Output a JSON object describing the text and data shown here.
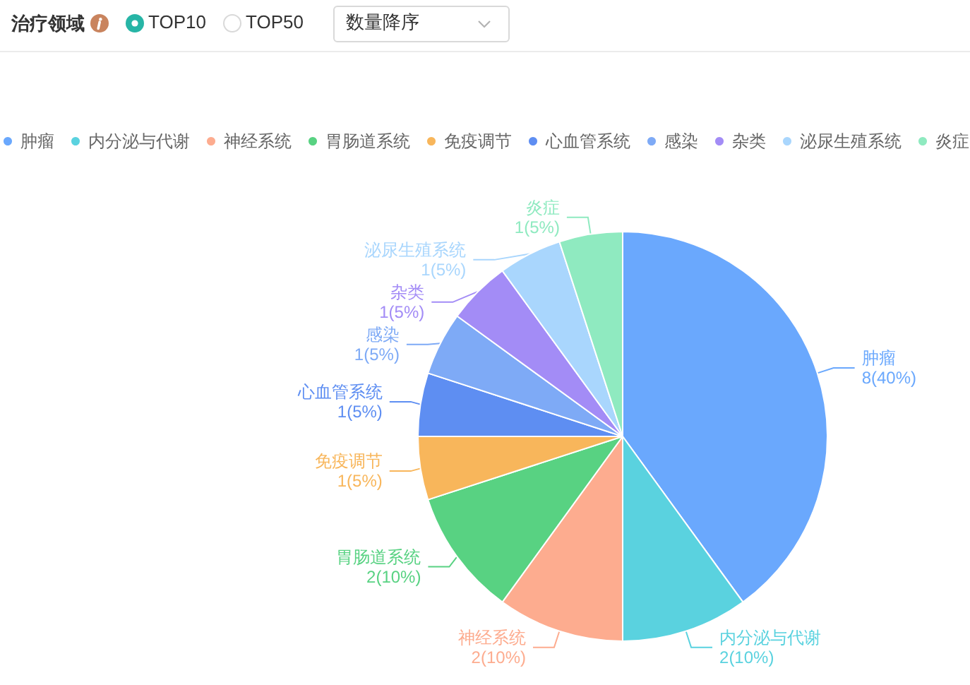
{
  "chart_data": {
    "type": "pie",
    "title": "治疗领域",
    "categories": [
      "肿瘤",
      "内分泌与代谢",
      "神经系统",
      "胃肠道系统",
      "免疫调节",
      "心血管系统",
      "感染",
      "杂类",
      "泌尿生殖系统",
      "炎症"
    ],
    "values": [
      8,
      2,
      2,
      2,
      1,
      1,
      1,
      1,
      1,
      1
    ],
    "value_labels": [
      "8(40%)",
      "2(10%)",
      "2(10%)",
      "2(10%)",
      "1(5%)",
      "1(5%)",
      "1(5%)",
      "1(5%)",
      "1(5%)",
      "1(5%)"
    ],
    "colors": [
      "#6aa8fd",
      "#5ad2df",
      "#fdac8f",
      "#58d282",
      "#f8b65b",
      "#5e8ef2",
      "#7eaaf6",
      "#a38cf6",
      "#a9d6fd",
      "#8feac0"
    ],
    "legend": "top",
    "annotations": [
      "TOP10",
      "TOP50",
      "数量降序"
    ]
  }
}
